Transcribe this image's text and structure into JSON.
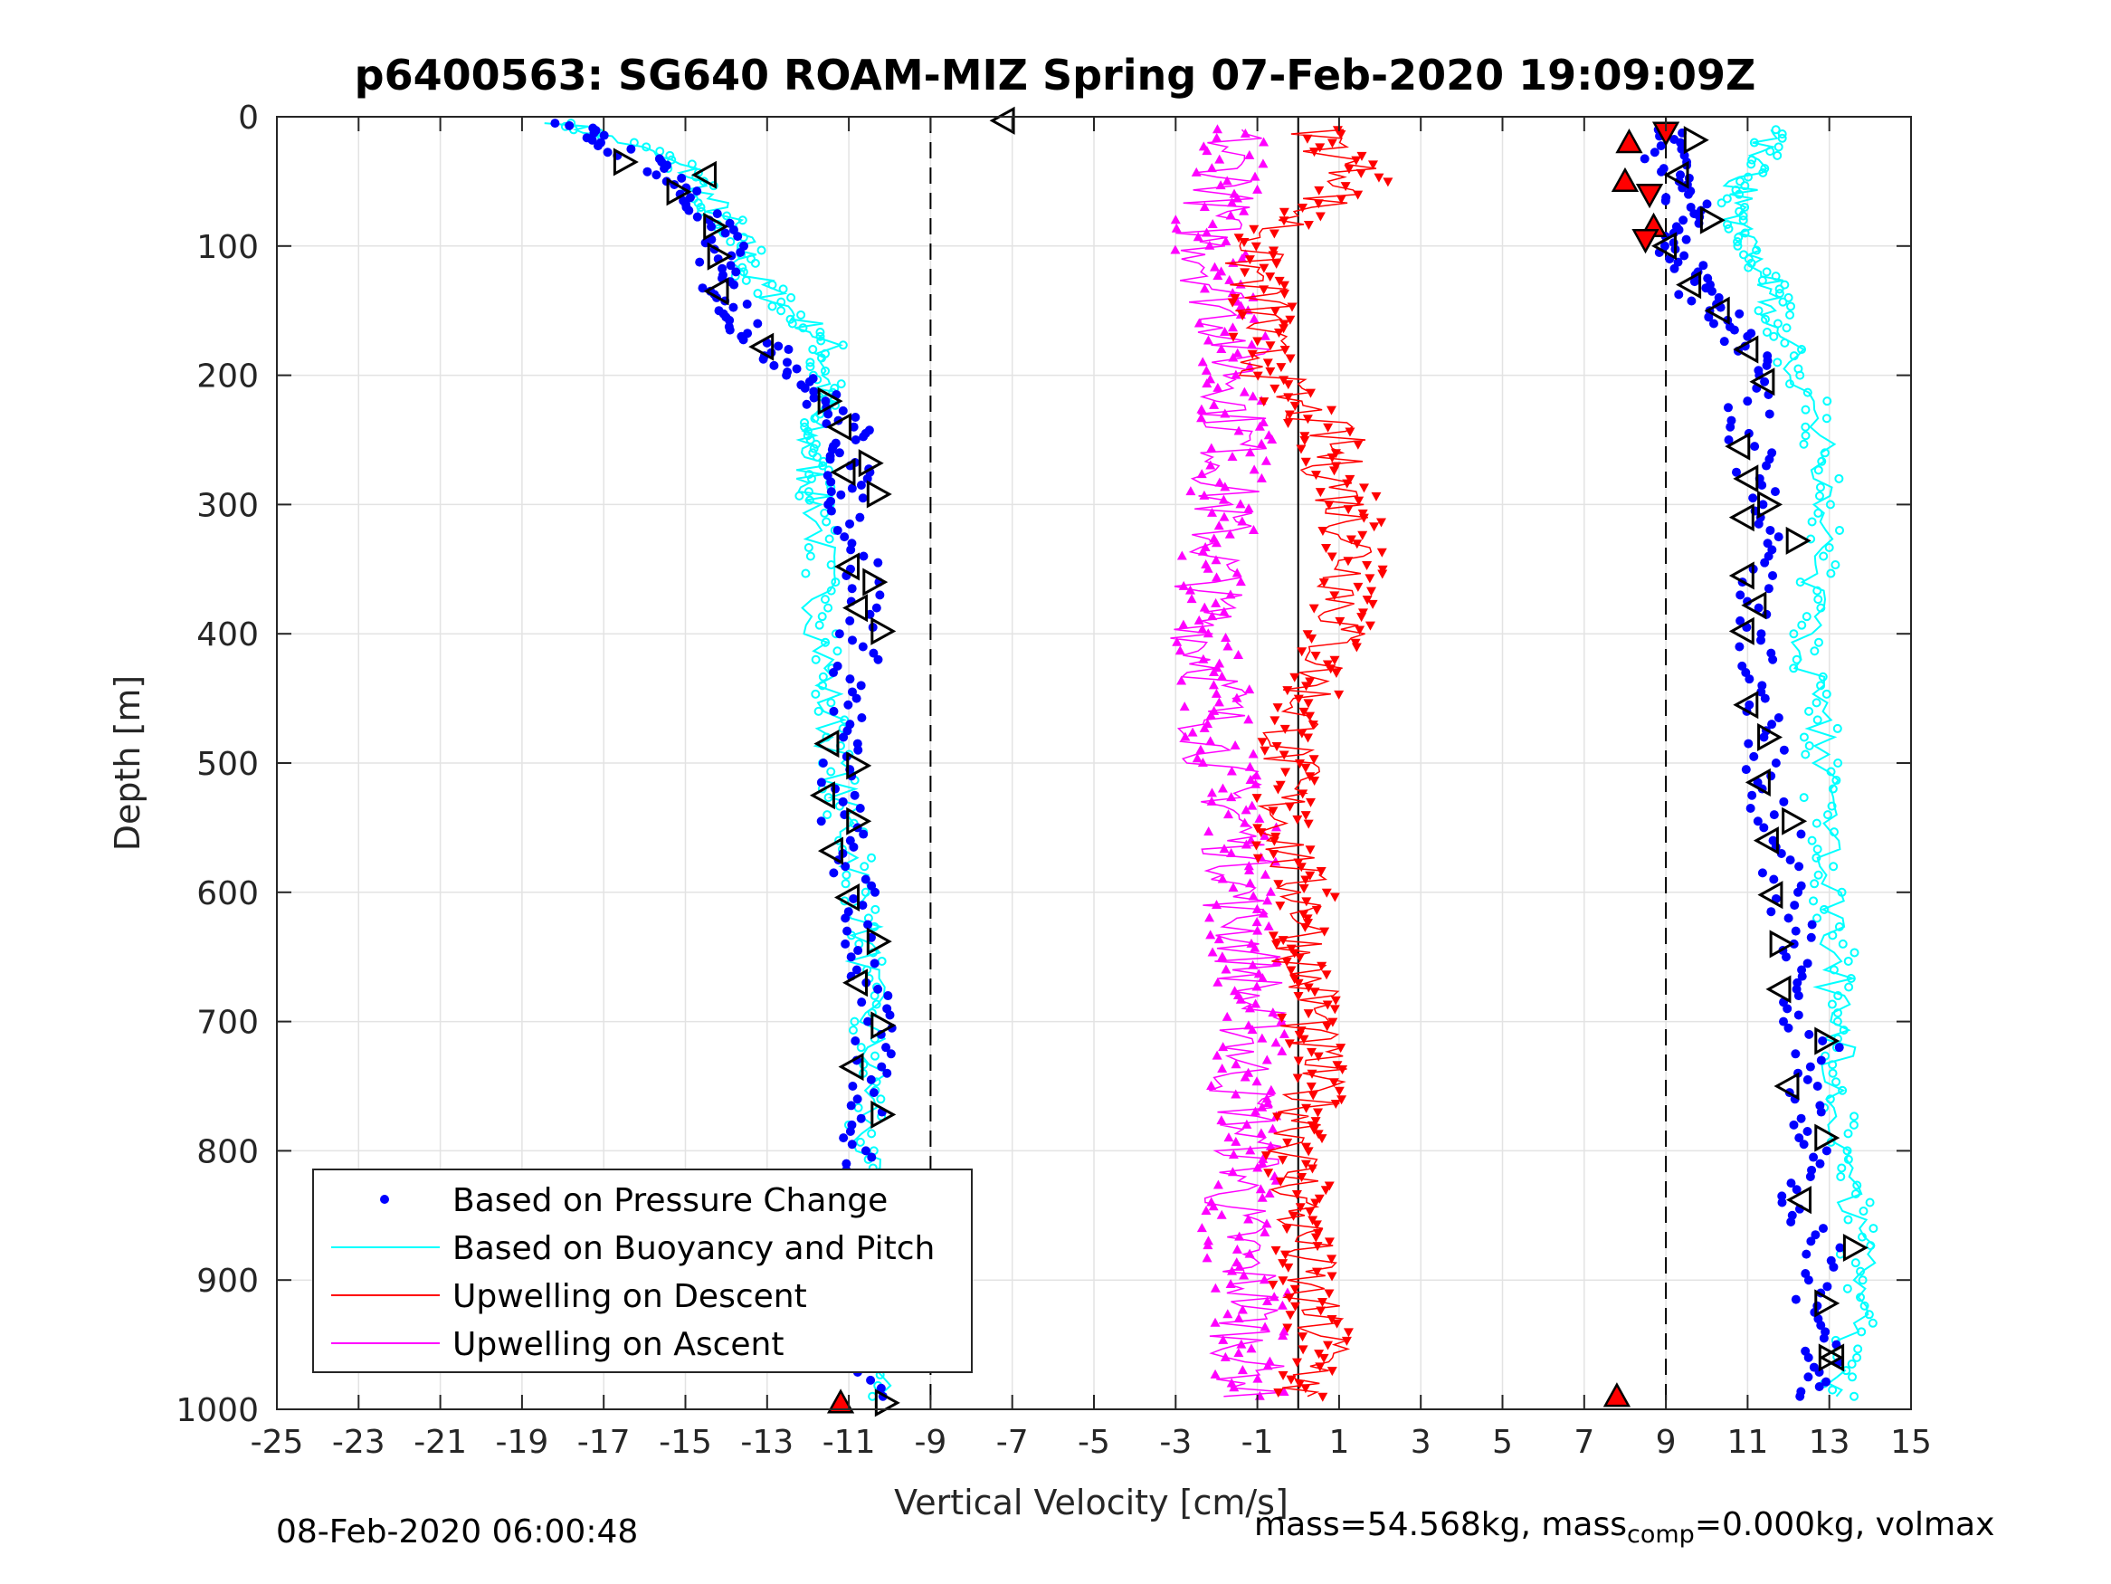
{
  "chart_data": {
    "type": "scatter",
    "title": "p6400563: SG640 ROAM-MIZ Spring 07-Feb-2020 19:09:09Z",
    "xlabel": "Vertical Velocity [cm/s]",
    "ylabel": "Depth [m]",
    "xlim": [
      -25,
      15
    ],
    "ylim": [
      1000,
      0
    ],
    "y_reversed": true,
    "grid": true,
    "xticks": [
      -25,
      -23,
      -21,
      -19,
      -17,
      -15,
      -13,
      -11,
      -9,
      -7,
      -5,
      -3,
      -1,
      1,
      3,
      5,
      7,
      9,
      11,
      13,
      15
    ],
    "yticks": [
      0,
      100,
      200,
      300,
      400,
      500,
      600,
      700,
      800,
      900,
      1000
    ],
    "reference_lines": [
      {
        "x": -9,
        "style": "dashed",
        "color": "#000000"
      },
      {
        "x": 9,
        "style": "dashed",
        "color": "#000000"
      },
      {
        "x": 0,
        "style": "solid",
        "color": "#000000"
      }
    ],
    "legend_position": "bottom-left",
    "legend": [
      {
        "label": "Based on Pressure Change",
        "color": "#0000ff",
        "marker": "dot"
      },
      {
        "label": "Based on Buoyancy and Pitch",
        "color": "#00ffff",
        "marker": "line"
      },
      {
        "label": "Upwelling on Descent",
        "color": "#ff0000",
        "marker": "line"
      },
      {
        "label": "Upwelling on Ascent",
        "color": "#ff00ff",
        "marker": "line"
      }
    ],
    "series": [
      {
        "name": "Based on Pressure Change",
        "color": "#0000ff",
        "descent": {
          "depth": [
            5,
            20,
            40,
            60,
            80,
            100,
            120,
            140,
            160,
            180,
            200,
            220,
            240,
            260,
            280,
            300,
            340,
            380,
            420,
            460,
            500,
            540,
            580,
            620,
            660,
            700,
            740,
            780,
            820,
            860,
            900,
            940,
            990
          ],
          "velocity": [
            -18,
            -17,
            -15.5,
            -15,
            -14.5,
            -14,
            -14.3,
            -14,
            -13.5,
            -13,
            -12,
            -11.7,
            -11,
            -11,
            -11,
            -11,
            -10.7,
            -10.6,
            -10.8,
            -11,
            -11.3,
            -11.2,
            -11,
            -10.7,
            -10.6,
            -10.5,
            -10.4,
            -10.6,
            -10.7,
            -10.5,
            -10.6,
            -10.3,
            -10.2
          ]
        },
        "ascent": {
          "depth": [
            990,
            960,
            920,
            880,
            840,
            800,
            760,
            720,
            680,
            640,
            600,
            560,
            520,
            480,
            440,
            400,
            360,
            320,
            280,
            240,
            200,
            170,
            150,
            130,
            110,
            90,
            70,
            50,
            30,
            10
          ],
          "velocity": [
            12.5,
            12.8,
            12.7,
            12.8,
            12.3,
            12.6,
            12.2,
            12.7,
            12.1,
            12.4,
            11.9,
            11.8,
            11.5,
            11.3,
            11.3,
            11.1,
            11.2,
            11.3,
            11.1,
            11,
            11.1,
            10.9,
            10.2,
            9.6,
            9.3,
            9.3,
            9.5,
            9.2,
            9,
            9
          ]
        }
      },
      {
        "name": "Based on Buoyancy and Pitch",
        "color": "#00ffff",
        "descent": {
          "depth": [
            5,
            20,
            40,
            60,
            80,
            100,
            120,
            140,
            160,
            180,
            200,
            220,
            240,
            260,
            280,
            300,
            340,
            380,
            420,
            460,
            500,
            540,
            580,
            620,
            660,
            700,
            740,
            780,
            820,
            860,
            900,
            940,
            990
          ],
          "velocity": [
            -18,
            -16.5,
            -15,
            -14.5,
            -14,
            -13.6,
            -13.5,
            -12.8,
            -12,
            -11.5,
            -11.5,
            -11.7,
            -12,
            -12,
            -11.9,
            -11.8,
            -11.7,
            -11.7,
            -11.6,
            -11.5,
            -11.3,
            -11.1,
            -10.8,
            -10.6,
            -10.6,
            -10.5,
            -10.4,
            -10.6,
            -10.7,
            -10.5,
            -10.2,
            -10.1,
            -10
          ]
        },
        "ascent": {
          "depth": [
            990,
            960,
            920,
            880,
            840,
            800,
            760,
            720,
            680,
            640,
            600,
            560,
            520,
            480,
            440,
            400,
            360,
            320,
            280,
            240,
            200,
            170,
            150,
            130,
            110,
            90,
            70,
            50,
            30,
            10
          ],
          "velocity": [
            13.2,
            13.5,
            13.7,
            13.7,
            13.6,
            13.5,
            13.2,
            13.3,
            13.1,
            13.2,
            13.0,
            12.9,
            12.8,
            12.8,
            12.6,
            12.5,
            12.6,
            12.9,
            12.8,
            12.7,
            12.3,
            11.9,
            11.7,
            11.6,
            11.4,
            10.8,
            10.6,
            10.9,
            11.3,
            11.5
          ]
        }
      },
      {
        "name": "Upwelling on Descent",
        "color": "#ff0000",
        "depth": [
          10,
          30,
          50,
          70,
          90,
          110,
          130,
          150,
          170,
          190,
          210,
          230,
          250,
          270,
          290,
          310,
          330,
          350,
          370,
          390,
          410,
          430,
          450,
          470,
          490,
          510,
          530,
          550,
          570,
          590,
          610,
          630,
          650,
          670,
          690,
          710,
          730,
          750,
          770,
          790,
          810,
          830,
          850,
          870,
          890,
          910,
          930,
          950,
          970,
          990
        ],
        "velocity": [
          0.5,
          1,
          1.5,
          0.4,
          -0.7,
          -1.2,
          -1,
          -0.9,
          -1,
          -0.8,
          -0.5,
          0.2,
          0.9,
          0.8,
          1.1,
          1.2,
          1.5,
          1.3,
          1.2,
          1.1,
          0.8,
          0.5,
          0.2,
          0,
          -0.3,
          -0.2,
          -0.4,
          -0.3,
          -0.2,
          -0.1,
          0.3,
          0.2,
          0.1,
          0.3,
          0.4,
          0.2,
          0.5,
          0.3,
          0.3,
          0.1,
          -0.1,
          0,
          0,
          0.1,
          0.2,
          0.1,
          0.4,
          0.7,
          0.5,
          0
        ]
      },
      {
        "name": "Upwelling on Ascent",
        "color": "#ff00ff",
        "depth": [
          10,
          30,
          50,
          70,
          90,
          110,
          130,
          150,
          170,
          190,
          210,
          230,
          250,
          270,
          290,
          310,
          330,
          350,
          370,
          390,
          410,
          430,
          450,
          470,
          490,
          510,
          530,
          550,
          570,
          590,
          610,
          630,
          650,
          670,
          690,
          710,
          730,
          750,
          770,
          790,
          810,
          830,
          850,
          870,
          890,
          910,
          930,
          950,
          970,
          990
        ],
        "velocity": [
          -1.5,
          -1.8,
          -1.6,
          -2,
          -2.2,
          -2.1,
          -2,
          -1.8,
          -1.6,
          -1.5,
          -1.4,
          -1.6,
          -1.5,
          -1.7,
          -1.8,
          -1.9,
          -2,
          -2,
          -2.2,
          -2.1,
          -2.3,
          -2,
          -1.9,
          -2.1,
          -2,
          -1.8,
          -1.6,
          -1.4,
          -1.5,
          -1.3,
          -1.5,
          -1.3,
          -1.2,
          -1.1,
          -1.2,
          -1.1,
          -1.3,
          -1.4,
          -1.2,
          -1.3,
          -1.1,
          -1.5,
          -1.6,
          -1.4,
          -1.3,
          -1.1,
          -1.2,
          -1.3,
          -1.2,
          -1.1
        ]
      }
    ],
    "markers": {
      "triangles_right_black": [
        [
          -16.5,
          35
        ],
        [
          -15.2,
          58
        ],
        [
          -14.3,
          85
        ],
        [
          -14.2,
          108
        ],
        [
          -11.5,
          220
        ],
        [
          -10.5,
          268
        ],
        [
          -10.3,
          292
        ],
        [
          -10.4,
          360
        ],
        [
          -10.2,
          398
        ],
        [
          -10.8,
          502
        ],
        [
          -10.8,
          545
        ],
        [
          -10.3,
          638
        ],
        [
          -10.2,
          703
        ],
        [
          -10.2,
          772
        ],
        [
          -10.5,
          862
        ],
        [
          -10.1,
          930
        ],
        [
          -10.1,
          995
        ],
        [
          9.7,
          18
        ],
        [
          10.1,
          80
        ],
        [
          11.5,
          300
        ],
        [
          12.2,
          328
        ],
        [
          11.5,
          480
        ],
        [
          12.1,
          545
        ],
        [
          11.8,
          640
        ],
        [
          12.9,
          715
        ],
        [
          12.9,
          790
        ],
        [
          13.6,
          875
        ],
        [
          12.9,
          918
        ],
        [
          13.0,
          960
        ]
      ],
      "triangles_left_black": [
        [
          -7.2,
          3
        ],
        [
          -14.5,
          45
        ],
        [
          -14.2,
          135
        ],
        [
          -13.1,
          178
        ],
        [
          -11.2,
          240
        ],
        [
          -11.1,
          275
        ],
        [
          -11.0,
          348
        ],
        [
          -10.8,
          380
        ],
        [
          -11.5,
          485
        ],
        [
          -11.6,
          525
        ],
        [
          -11.4,
          568
        ],
        [
          -11.0,
          604
        ],
        [
          -10.8,
          670
        ],
        [
          -10.9,
          735
        ],
        [
          -11.0,
          830
        ],
        [
          -10.8,
          895
        ],
        [
          -10.7,
          960
        ],
        [
          9.3,
          45
        ],
        [
          9.0,
          100
        ],
        [
          9.6,
          130
        ],
        [
          10.3,
          150
        ],
        [
          11.0,
          180
        ],
        [
          11.4,
          205
        ],
        [
          10.8,
          255
        ],
        [
          11.0,
          280
        ],
        [
          10.9,
          310
        ],
        [
          10.9,
          355
        ],
        [
          11.2,
          378
        ],
        [
          10.9,
          398
        ],
        [
          11.0,
          455
        ],
        [
          11.3,
          515
        ],
        [
          11.5,
          560
        ],
        [
          11.6,
          602
        ],
        [
          11.8,
          675
        ],
        [
          12.0,
          750
        ],
        [
          12.3,
          838
        ],
        [
          13.1,
          960
        ]
      ],
      "triangles_up_red": [
        [
          -11.2,
          995
        ],
        [
          7.8,
          990
        ],
        [
          8.1,
          20
        ],
        [
          8.0,
          50
        ],
        [
          8.7,
          85
        ]
      ],
      "triangles_down_red": [
        [
          9.0,
          12
        ],
        [
          8.6,
          60
        ],
        [
          8.5,
          95
        ]
      ]
    }
  },
  "footer": {
    "left": "08-Feb-2020 06:00:48",
    "right_main": "mass=54.568kg, mass",
    "right_sub": "comp",
    "right_rest": "=0.000kg, volmax"
  }
}
